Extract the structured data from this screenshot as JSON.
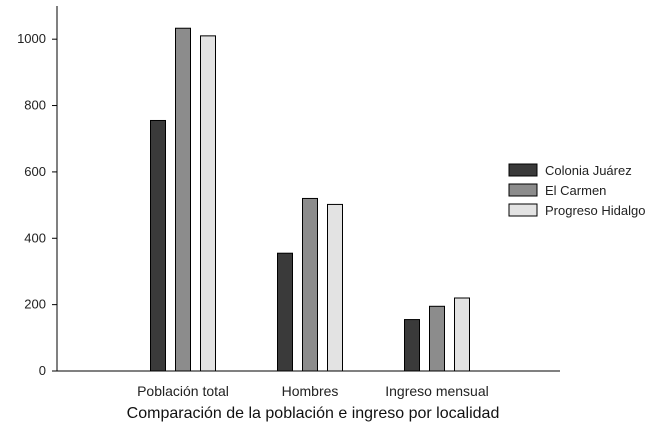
{
  "chart_data": {
    "type": "bar",
    "title": "",
    "xlabel": "Comparación de la población e ingreso por localidad",
    "ylabel": "",
    "categories": [
      "Población total",
      "Hombres",
      "Ingreso mensual"
    ],
    "series": [
      {
        "name": "Colonia Juárez",
        "color": "#3a3a3a",
        "values": [
          755,
          355,
          155
        ]
      },
      {
        "name": "El Carmen",
        "color": "#8c8c8c",
        "values": [
          1033,
          520,
          195
        ]
      },
      {
        "name": "Progreso Hidalgo",
        "color": "#e3e3e3",
        "values": [
          1010,
          502,
          220
        ]
      }
    ],
    "ylim": [
      0,
      1100
    ],
    "yticks": [
      0,
      200,
      400,
      600,
      800,
      1000
    ],
    "grid": false,
    "legend": {
      "placement": "right"
    }
  }
}
